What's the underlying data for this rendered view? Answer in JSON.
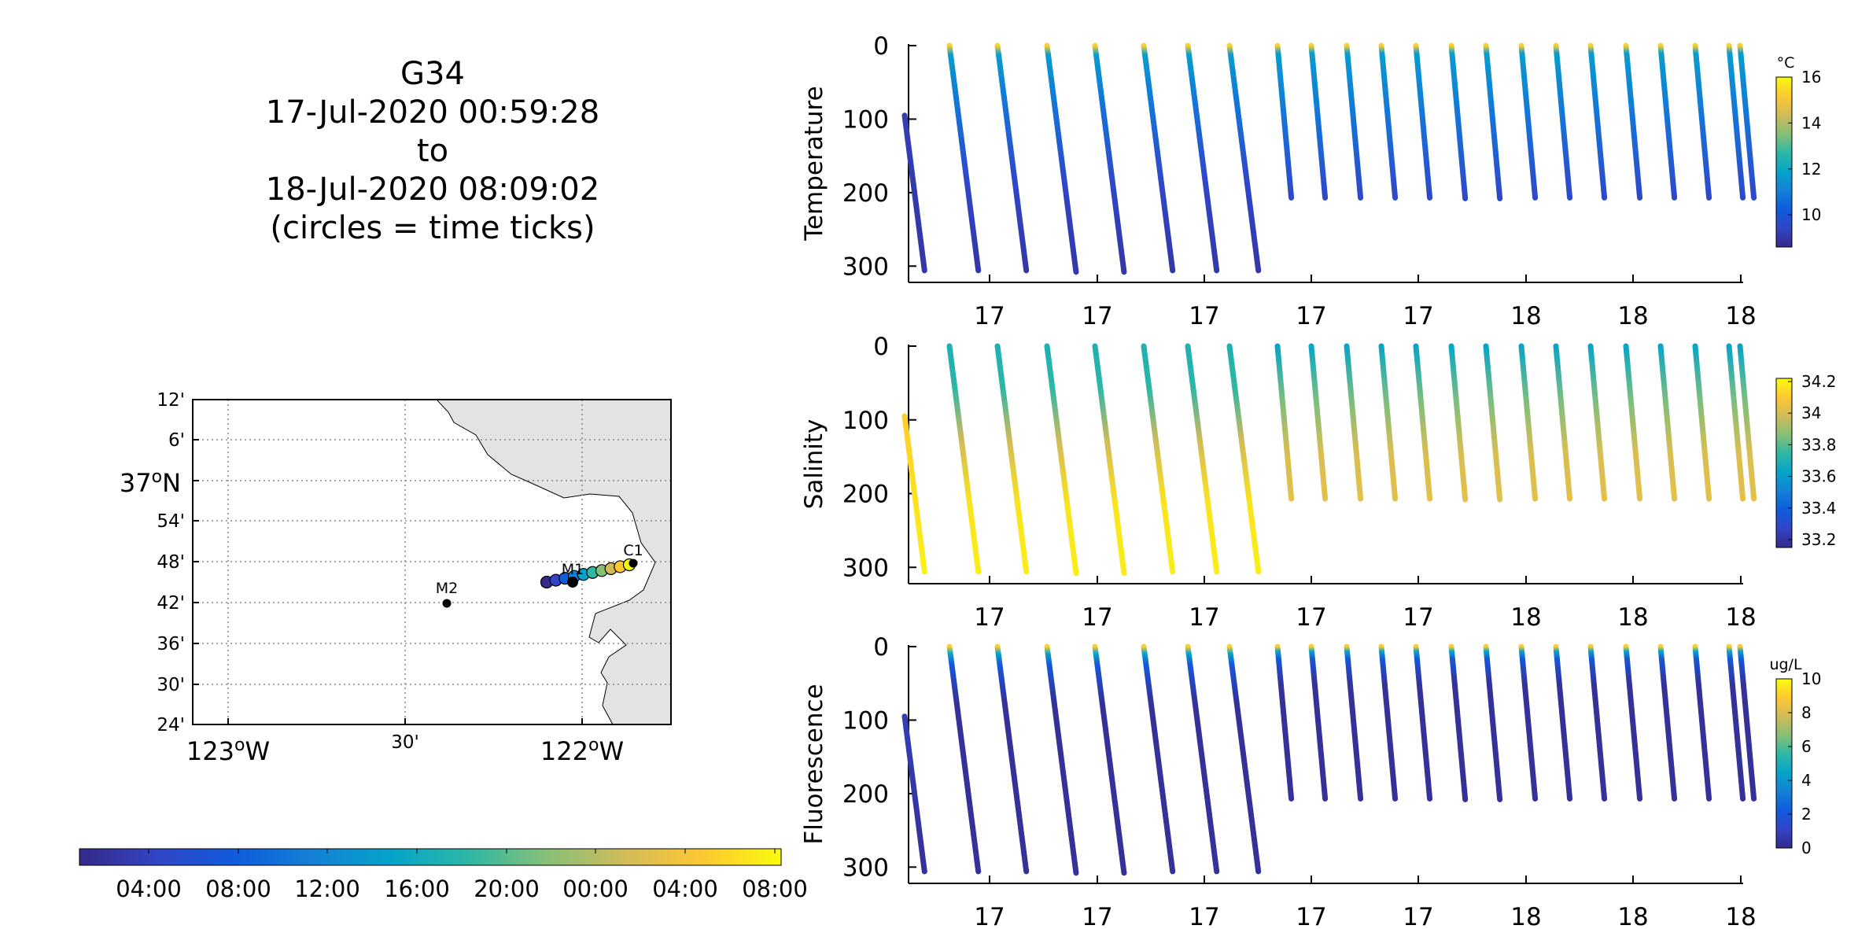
{
  "title": {
    "lines": [
      "G34",
      "17-Jul-2020 00:59:28",
      "to",
      "18-Jul-2020 08:09:02",
      "(circles = time ticks)"
    ]
  },
  "map": {
    "lat_labels": [
      "12'",
      "6'",
      "37°N",
      "54'",
      "48'",
      "42'",
      "36'",
      "30'",
      "24'"
    ],
    "lon_labels": [
      "123°W",
      "30'",
      "122°W"
    ],
    "stations": [
      {
        "name": "M2",
        "lon": -122.39,
        "lat": 36.7
      },
      {
        "name": "M1",
        "lon": -122.03,
        "lat": 36.75
      },
      {
        "name": "C1",
        "lon": -121.84,
        "lat": 36.8
      }
    ],
    "track": {
      "start": {
        "lon": -122.09,
        "lat": 36.74
      },
      "end": {
        "lon": -121.84,
        "lat": 36.79
      }
    },
    "colors": {
      "land": "#e3e3e3",
      "grid": "#888888"
    }
  },
  "time_colorbar": {
    "ticks": [
      "04:00",
      "08:00",
      "12:00",
      "16:00",
      "20:00",
      "00:00",
      "04:00",
      "08:00"
    ]
  },
  "chart_data": [
    {
      "type": "scatter",
      "title": "",
      "ylabel": "Temperature",
      "ylim": [
        0,
        320
      ],
      "yticks": [
        0,
        100,
        200,
        300
      ],
      "xtick_labels": [
        "17",
        "17",
        "17",
        "17",
        "17",
        "18",
        "18",
        "18"
      ],
      "colorbar": {
        "unit": "°C",
        "ticks": [
          "10",
          "12",
          "14",
          "16"
        ],
        "range": [
          8.6,
          16.0
        ]
      },
      "profile_depth_m": [
        306,
        306,
        306,
        308,
        308,
        306,
        306,
        306,
        207,
        207,
        207,
        207,
        207,
        208,
        208,
        207,
        207,
        207,
        207,
        207,
        207,
        207,
        207
      ],
      "surface_value": 15.3,
      "deep_value": 9.0
    },
    {
      "type": "scatter",
      "title": "",
      "ylabel": "Salinity",
      "ylim": [
        0,
        320
      ],
      "yticks": [
        0,
        100,
        200,
        300
      ],
      "xtick_labels": [
        "17",
        "17",
        "17",
        "17",
        "17",
        "18",
        "18",
        "18"
      ],
      "colorbar": {
        "unit": "",
        "ticks": [
          "33.2",
          "33.4",
          "33.6",
          "33.8",
          "34",
          "34.2"
        ],
        "range": [
          33.15,
          34.22
        ]
      },
      "profile_depth_m": [
        306,
        306,
        306,
        308,
        308,
        306,
        306,
        306,
        207,
        207,
        207,
        207,
        207,
        208,
        208,
        207,
        207,
        207,
        207,
        207,
        207,
        207,
        207
      ],
      "surface_value": 33.7,
      "deep_value": 34.15
    },
    {
      "type": "scatter",
      "title": "",
      "ylabel": "Fluorescence",
      "ylim": [
        0,
        320
      ],
      "yticks": [
        0,
        100,
        200,
        300
      ],
      "xtick_labels": [
        "17",
        "17",
        "17",
        "17",
        "17",
        "18",
        "18",
        "18"
      ],
      "colorbar": {
        "unit": "ug/L",
        "ticks": [
          "0",
          "2",
          "4",
          "6",
          "8",
          "10"
        ],
        "range": [
          0,
          10
        ]
      },
      "profile_depth_m": [
        306,
        306,
        306,
        308,
        308,
        306,
        306,
        306,
        207,
        207,
        207,
        207,
        207,
        208,
        208,
        207,
        207,
        207,
        207,
        207,
        207,
        207,
        207
      ],
      "surface_value": 9.0,
      "deep_value": 0.3
    }
  ],
  "colors": {
    "parula": [
      "#352a87",
      "#3245c7",
      "#0f5cdd",
      "#1481d6",
      "#06a4ca",
      "#2eb7a4",
      "#87bf77",
      "#d1bb59",
      "#fec832",
      "#f9fb0e"
    ]
  }
}
